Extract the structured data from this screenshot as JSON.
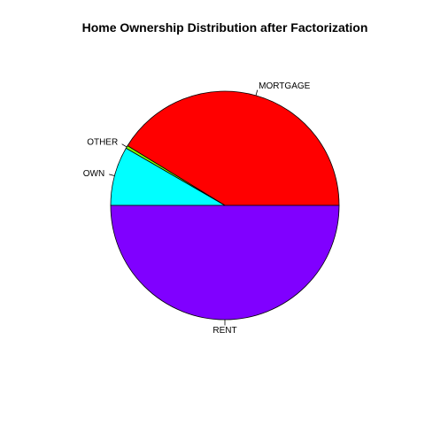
{
  "chart_data": {
    "type": "pie",
    "title": "Home Ownership Distribution after Factorization",
    "labels": [
      "MORTGAGE",
      "OTHER",
      "OWN",
      "RENT"
    ],
    "values": [
      41.5,
      0.4,
      8.4,
      50.3
    ],
    "colors": [
      "#ff0000",
      "#80ff00",
      "#00ffff",
      "#8000ff"
    ],
    "start_angle_deg": 0,
    "direction": "counterclockwise",
    "legend": "none"
  }
}
